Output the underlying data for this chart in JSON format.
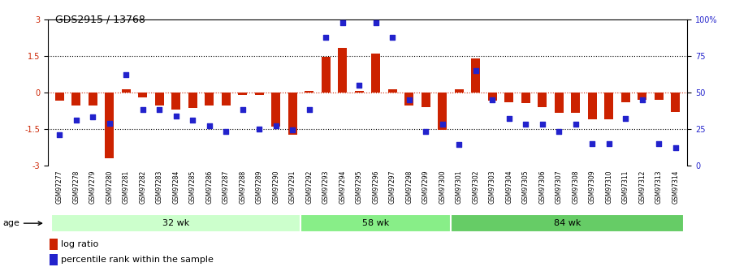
{
  "title": "GDS2915 / 13768",
  "samples": [
    "GSM97277",
    "GSM97278",
    "GSM97279",
    "GSM97280",
    "GSM97281",
    "GSM97282",
    "GSM97283",
    "GSM97284",
    "GSM97285",
    "GSM97286",
    "GSM97287",
    "GSM97288",
    "GSM97289",
    "GSM97290",
    "GSM97291",
    "GSM97292",
    "GSM97293",
    "GSM97294",
    "GSM97295",
    "GSM97296",
    "GSM97297",
    "GSM97298",
    "GSM97299",
    "GSM97300",
    "GSM97301",
    "GSM97302",
    "GSM97303",
    "GSM97304",
    "GSM97305",
    "GSM97306",
    "GSM97307",
    "GSM97308",
    "GSM97309",
    "GSM97310",
    "GSM97311",
    "GSM97312",
    "GSM97313",
    "GSM97314"
  ],
  "log_ratio": [
    -0.35,
    -0.55,
    -0.55,
    -2.7,
    0.12,
    -0.22,
    -0.55,
    -0.7,
    -0.65,
    -0.55,
    -0.55,
    -0.1,
    -0.12,
    -1.4,
    -1.75,
    0.05,
    1.45,
    1.85,
    0.05,
    1.6,
    0.12,
    -0.55,
    -0.6,
    -1.55,
    0.12,
    1.4,
    -0.35,
    -0.4,
    -0.45,
    -0.6,
    -0.85,
    -0.85,
    -1.1,
    -1.1,
    -0.4,
    -0.3,
    -0.3,
    -0.8
  ],
  "percentile": [
    21,
    31,
    33,
    29,
    62,
    38,
    38,
    34,
    31,
    27,
    23,
    38,
    25,
    27,
    24,
    38,
    88,
    98,
    55,
    98,
    88,
    45,
    23,
    28,
    14,
    65,
    45,
    32,
    28,
    28,
    23,
    28,
    15,
    15,
    32,
    45,
    15,
    12
  ],
  "groups": [
    {
      "label": "32 wk",
      "start": 0,
      "end": 15
    },
    {
      "label": "58 wk",
      "start": 15,
      "end": 24
    },
    {
      "label": "84 wk",
      "start": 24,
      "end": 38
    }
  ],
  "group_colors": {
    "32 wk": "#CCFFCC",
    "58 wk": "#88EE88",
    "84 wk": "#66CC66"
  },
  "ylim": [
    -3,
    3
  ],
  "yticks_left": [
    -3,
    -1.5,
    0,
    1.5,
    3
  ],
  "ytick_labels_left": [
    "-3",
    "-1.5",
    "0",
    "1.5",
    "3"
  ],
  "ytick_labels_right": [
    "0",
    "25",
    "50",
    "75",
    "100%"
  ],
  "bar_color": "#CC2200",
  "dot_color": "#2222CC",
  "legend_log_ratio": "log ratio",
  "legend_percentile": "percentile rank within the sample",
  "age_label": "age"
}
